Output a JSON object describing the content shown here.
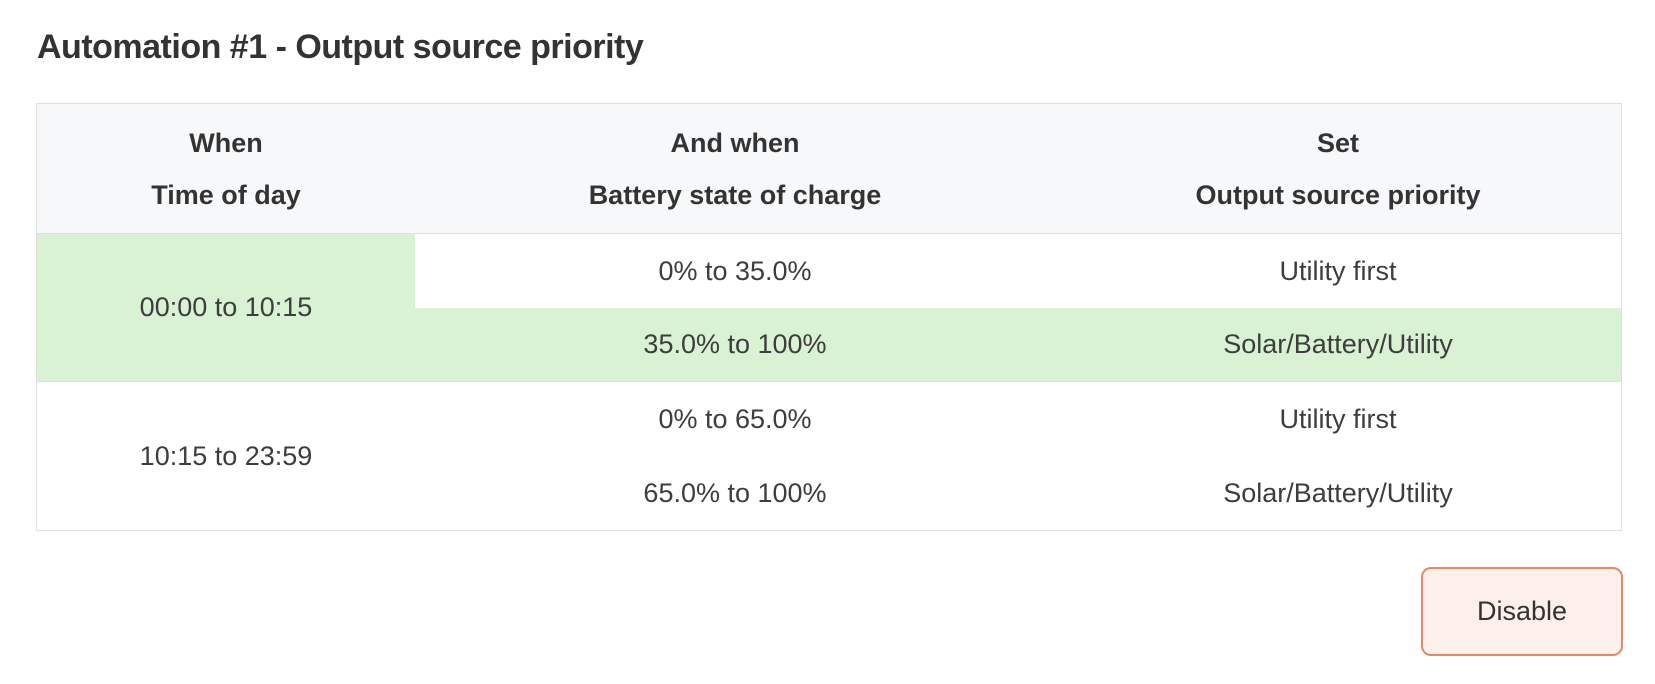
{
  "page": {
    "title": "Automation #1 - Output source priority"
  },
  "table": {
    "columns": [
      {
        "condition": "When",
        "label": "Time of day"
      },
      {
        "condition": "And when",
        "label": "Battery state of charge"
      },
      {
        "condition": "Set",
        "label": "Output source priority"
      }
    ],
    "groups": [
      {
        "time": "00:00 to 10:15",
        "time_active": true,
        "rules": [
          {
            "soc": "0% to 35.0%",
            "priority": "Utility first",
            "active": false
          },
          {
            "soc": "35.0% to 100%",
            "priority": "Solar/Battery/Utility",
            "active": true
          }
        ]
      },
      {
        "time": "10:15 to 23:59",
        "time_active": false,
        "rules": [
          {
            "soc": "0% to 65.0%",
            "priority": "Utility first",
            "active": false
          },
          {
            "soc": "65.0% to 100%",
            "priority": "Solar/Battery/Utility",
            "active": false
          }
        ]
      }
    ]
  },
  "actions": {
    "disable_label": "Disable"
  },
  "colors": {
    "active_highlight": "#d9f2d3",
    "header_background": "#f7f8fa",
    "table_border": "#e0e0e0",
    "button_background": "#fdefe9",
    "button_border": "#e18a68",
    "text": "#3a3a3a"
  }
}
